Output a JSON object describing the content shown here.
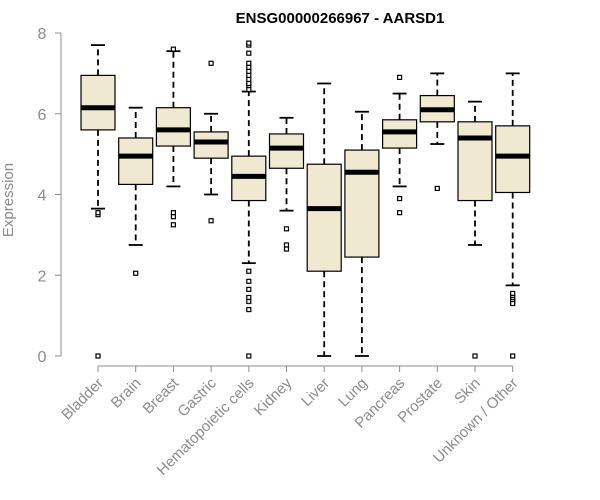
{
  "chart_data": {
    "type": "boxplot",
    "title": "ENSG00000266967 - AARSD1",
    "xlabel": "",
    "ylabel": "Expression",
    "ylim": [
      0,
      8
    ],
    "yticks": [
      0,
      2,
      4,
      6,
      8
    ],
    "colors": {
      "box_fill": "#efe9d1",
      "box_stroke": "#000000",
      "axis": "#8c8c8c",
      "median": "#000000"
    },
    "categories": [
      "Bladder",
      "Brain",
      "Breast",
      "Gastric",
      "Hematopoietic cells",
      "Kidney",
      "Liver",
      "Lung",
      "Pancreas",
      "Prostate",
      "Skin",
      "Unknown / Other"
    ],
    "boxes": [
      {
        "name": "Bladder",
        "whisker_low": 3.65,
        "q1": 5.6,
        "median": 6.15,
        "q3": 6.95,
        "whisker_high": 7.7,
        "outliers": [
          3.5,
          3.55,
          0.0
        ]
      },
      {
        "name": "Brain",
        "whisker_low": 2.75,
        "q1": 4.25,
        "median": 4.95,
        "q3": 5.4,
        "whisker_high": 6.15,
        "outliers": [
          2.05
        ]
      },
      {
        "name": "Breast",
        "whisker_low": 4.2,
        "q1": 5.2,
        "median": 5.6,
        "q3": 6.15,
        "whisker_high": 7.55,
        "outliers": [
          3.55,
          3.45,
          3.25,
          7.6
        ]
      },
      {
        "name": "Gastric",
        "whisker_low": 4.0,
        "q1": 4.9,
        "median": 5.3,
        "q3": 5.55,
        "whisker_high": 6.0,
        "outliers": [
          3.35,
          7.25
        ]
      },
      {
        "name": "Hematopoietic cells",
        "whisker_low": 2.3,
        "q1": 3.85,
        "median": 4.45,
        "q3": 4.95,
        "whisker_high": 6.55,
        "outliers": [
          6.6,
          6.7,
          6.75,
          6.85,
          6.95,
          7.05,
          7.15,
          7.25,
          7.5,
          7.7,
          7.75,
          2.1,
          1.85,
          1.65,
          1.45,
          1.35,
          1.15,
          0.0
        ]
      },
      {
        "name": "Kidney",
        "whisker_low": 3.6,
        "q1": 4.65,
        "median": 5.15,
        "q3": 5.5,
        "whisker_high": 5.9,
        "outliers": [
          3.15,
          2.75,
          2.65
        ]
      },
      {
        "name": "Liver",
        "whisker_low": 0.0,
        "q1": 2.1,
        "median": 3.65,
        "q3": 4.75,
        "whisker_high": 6.75,
        "outliers": []
      },
      {
        "name": "Lung",
        "whisker_low": 0.0,
        "q1": 2.45,
        "median": 4.55,
        "q3": 5.1,
        "whisker_high": 6.05,
        "outliers": []
      },
      {
        "name": "Pancreas",
        "whisker_low": 4.2,
        "q1": 5.15,
        "median": 5.55,
        "q3": 5.85,
        "whisker_high": 6.5,
        "outliers": [
          3.9,
          3.55,
          6.9
        ]
      },
      {
        "name": "Prostate",
        "whisker_low": 5.25,
        "q1": 5.8,
        "median": 6.1,
        "q3": 6.45,
        "whisker_high": 7.0,
        "outliers": [
          4.15
        ]
      },
      {
        "name": "Skin",
        "whisker_low": 2.75,
        "q1": 3.85,
        "median": 5.4,
        "q3": 5.8,
        "whisker_high": 6.3,
        "outliers": [
          0.0
        ]
      },
      {
        "name": "Unknown / Other",
        "whisker_low": 1.75,
        "q1": 4.05,
        "median": 4.95,
        "q3": 5.7,
        "whisker_high": 7.0,
        "outliers": [
          1.55,
          1.45,
          1.4,
          1.35,
          1.3,
          0.0
        ]
      }
    ]
  }
}
